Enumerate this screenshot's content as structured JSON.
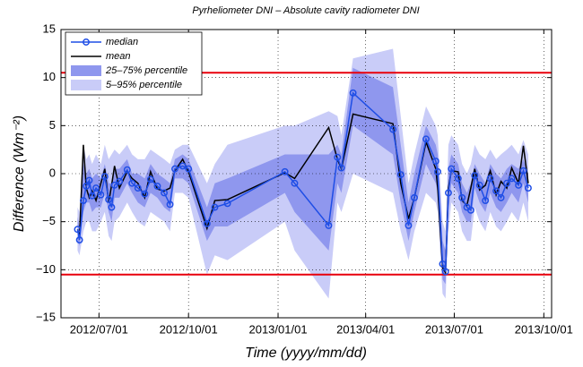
{
  "chart_data": {
    "type": "line",
    "title": "Pyrheliometer DNI – Absolute cavity radiometer DNI",
    "x_label": "Time (yyyy/mm/dd)",
    "y_label": "Difference (Wm⁻²)",
    "xlim": [
      "2012/05/23",
      "2013/10/09"
    ],
    "xticks": [
      "2012/07/01",
      "2012/10/01",
      "2013/01/01",
      "2013/04/01",
      "2013/07/01",
      "2013/10/01"
    ],
    "ylim": [
      -15,
      15
    ],
    "yticks": [
      {
        "value": -15,
        "label": "−15"
      },
      {
        "value": -10,
        "label": "−10"
      },
      {
        "value": -5,
        "label": "−5"
      },
      0,
      5,
      10,
      15
    ],
    "grid": true,
    "legend": "top-left",
    "hlines": [
      10.5,
      -10.5
    ],
    "hline_color": "#e8000b",
    "x": [
      "2012/06/09",
      "2012/06/11",
      "2012/06/15",
      "2012/06/18",
      "2012/06/21",
      "2012/06/24",
      "2012/06/28",
      "2012/07/03",
      "2012/07/07",
      "2012/07/11",
      "2012/07/14",
      "2012/07/17",
      "2012/07/22",
      "2012/07/30",
      "2012/08/04",
      "2012/08/10",
      "2012/08/17",
      "2012/08/23",
      "2012/08/30",
      "2012/09/06",
      "2012/09/12",
      "2012/09/17",
      "2012/09/25",
      "2012/10/01",
      "2012/10/20",
      "2012/10/28",
      "2012/11/10",
      "2013/01/08",
      "2013/01/18",
      "2013/02/22",
      "2013/03/03",
      "2013/03/07",
      "2013/03/19",
      "2013/04/29",
      "2013/05/07",
      "2013/05/15",
      "2013/05/21",
      "2013/06/02",
      "2013/06/12",
      "2013/06/14",
      "2013/06/19",
      "2013/06/22",
      "2013/06/25",
      "2013/06/28",
      "2013/07/05",
      "2013/07/09",
      "2013/07/14",
      "2013/07/18",
      "2013/07/22",
      "2013/07/27",
      "2013/08/02",
      "2013/08/07",
      "2013/08/13",
      "2013/08/18",
      "2013/08/24",
      "2013/08/29",
      "2013/09/05",
      "2013/09/10",
      "2013/09/15"
    ],
    "bands": [
      {
        "name": "5–95% percentile",
        "color": "#c9ccf8",
        "lower": [
          -8,
          -8.5,
          -6,
          -5,
          -5,
          -6,
          -6,
          -5,
          -4,
          -6.5,
          -7,
          -5,
          -4.5,
          -3,
          -4,
          -5,
          -5.5,
          -4,
          -4.5,
          -5,
          -6,
          -2,
          -2,
          -2.5,
          -10.5,
          -8.5,
          -9,
          -5,
          -8,
          -13,
          -3,
          -4,
          0,
          -2,
          -6,
          -9,
          -6,
          -2,
          -3,
          -4,
          -12.5,
          -13,
          -6,
          -3,
          -4,
          -6,
          -7,
          -7,
          -3.5,
          -5,
          -6,
          -4,
          -5.5,
          -6,
          -5,
          -4,
          -5,
          -3,
          -5
        ],
        "upper": [
          -3.5,
          -4,
          3,
          1.5,
          2,
          1,
          2,
          1,
          3,
          1.5,
          2,
          2.5,
          2,
          3,
          2,
          1.5,
          1.5,
          2.5,
          2,
          1.5,
          1,
          2.5,
          3,
          3,
          -1,
          1,
          3,
          5,
          5,
          6.5,
          6,
          4,
          12,
          13,
          6,
          -1,
          2,
          7,
          5,
          4,
          -5,
          -6,
          3,
          4,
          3,
          1,
          0,
          1,
          3,
          2,
          1.5,
          2.5,
          1.5,
          2,
          2.5,
          3,
          2,
          3.5,
          2
        ]
      },
      {
        "name": "25–75% percentile",
        "color": "#8f97ee",
        "lower": [
          -7,
          -7.5,
          -4,
          -3,
          -3,
          -4,
          -3.5,
          -3.5,
          -2,
          -4,
          -5,
          -2.5,
          -2.5,
          -1,
          -2,
          -3,
          -3.5,
          -2,
          -2.5,
          -3.5,
          -4,
          -0.5,
          -0.5,
          -1,
          -7,
          -5.5,
          -5.5,
          -2,
          -4,
          -8,
          -1,
          -2,
          5,
          2,
          -3,
          -7,
          -4,
          1,
          -1,
          -2,
          -11,
          -11.5,
          -4,
          -1,
          -2,
          -4,
          -5,
          -5,
          -1.5,
          -3,
          -4,
          -2,
          -3.5,
          -4,
          -3,
          -2,
          -3,
          -1,
          -3
        ],
        "upper": [
          -4.5,
          -5.5,
          1,
          0,
          0.5,
          -0.5,
          0,
          -0.5,
          1,
          -1,
          -1,
          0.5,
          0.5,
          1.5,
          0,
          0,
          -0.5,
          1,
          0,
          -0.5,
          -1,
          1.5,
          2,
          1.5,
          -3.5,
          -1,
          -0.5,
          2,
          2,
          2,
          3,
          2,
          11,
          9,
          3,
          -3,
          0,
          5,
          3,
          2,
          -7,
          -8,
          0.5,
          2,
          1,
          -1,
          -2,
          -1,
          1,
          0,
          -1,
          1,
          0,
          -0.5,
          0.5,
          1,
          0.5,
          1.5,
          0
        ]
      }
    ],
    "series": [
      {
        "name": "median",
        "color": "#1f4ee6",
        "values": [
          -5.8,
          -6.9,
          -2.8,
          -1.3,
          -0.7,
          -2.3,
          -1.5,
          -2.2,
          -0.3,
          -2.7,
          -3.5,
          -1.2,
          -0.8,
          0.4,
          -1,
          -1.5,
          -2.1,
          -0.6,
          -1.3,
          -2,
          -3.2,
          0.5,
          0.8,
          0.5,
          -5.2,
          -3.5,
          -3.1,
          0.2,
          -1,
          -5.4,
          1.7,
          0.6,
          8.4,
          4.6,
          -0.1,
          -5.4,
          -2.5,
          3.6,
          1.3,
          0.2,
          -9.4,
          -10.2,
          -2,
          0.5,
          -0.5,
          -2.5,
          -3.5,
          -3.8,
          -0.2,
          -1.2,
          -2.8,
          -0.5,
          -1.8,
          -2.5,
          -1,
          -0.5,
          -1.2,
          0.3,
          -1.5
        ]
      },
      {
        "name": "mean",
        "color": "#000000",
        "values": [
          -5.8,
          -6.5,
          3,
          -1.5,
          -2.5,
          -1.8,
          -2.8,
          -1,
          0.5,
          -3,
          -1.2,
          0.8,
          -1.5,
          0.2,
          -0.5,
          -1,
          -2.5,
          0.2,
          -1.6,
          -1.8,
          -1.5,
          0.3,
          1.5,
          0.2,
          -5.7,
          -2.8,
          -2.7,
          0.1,
          -0.5,
          4.8,
          1.5,
          0.5,
          6.2,
          5.2,
          -1,
          -4.7,
          -2.5,
          3.3,
          0.5,
          -1.5,
          -9.8,
          -10.3,
          -1.5,
          0.3,
          0.2,
          -2.8,
          -3.3,
          -1.5,
          0.5,
          -1.7,
          -1.2,
          0.3,
          -2.2,
          -0.8,
          -1.5,
          0.6,
          -1,
          2.9,
          -1
        ]
      }
    ]
  }
}
